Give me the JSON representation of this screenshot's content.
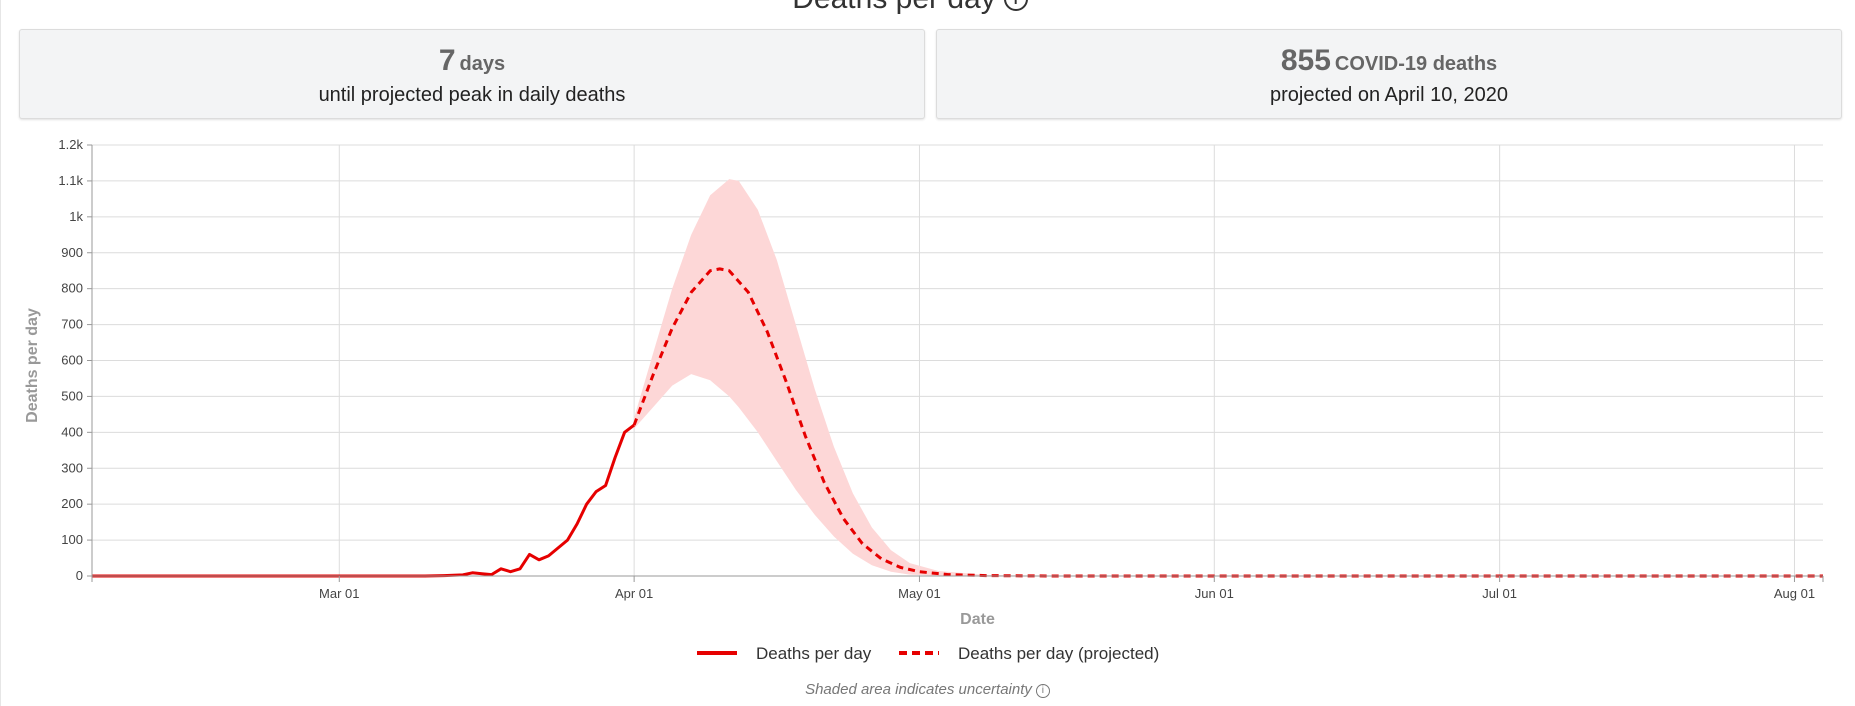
{
  "header": {
    "title": "Deaths per day"
  },
  "summary": {
    "peak_days_value": "7",
    "peak_days_unit": "days",
    "peak_days_caption": "until projected peak in daily deaths",
    "peak_deaths_value": "855",
    "peak_deaths_unit": "COVID-19 deaths",
    "peak_deaths_caption": "projected on April 10, 2020"
  },
  "footnote": "Shaded area indicates uncertainty",
  "colors": {
    "line": "#e60000",
    "band": "#fdd7d7",
    "grid": "#dcdcdc",
    "axis": "#999999"
  },
  "chart_data": {
    "type": "line",
    "xlabel": "Date",
    "ylabel": "Deaths per day",
    "x_range": [
      "2020-02-04",
      "2020-08-04"
    ],
    "ylim": [
      0,
      1200
    ],
    "x_ticks": [
      {
        "date": "2020-03-01",
        "label": "Mar 01"
      },
      {
        "date": "2020-04-01",
        "label": "Apr 01"
      },
      {
        "date": "2020-05-01",
        "label": "May 01"
      },
      {
        "date": "2020-06-01",
        "label": "Jun 01"
      },
      {
        "date": "2020-07-01",
        "label": "Jul 01"
      },
      {
        "date": "2020-08-01",
        "label": "Aug 01"
      }
    ],
    "y_ticks": [
      {
        "value": 0,
        "label": "0"
      },
      {
        "value": 100,
        "label": "100"
      },
      {
        "value": 200,
        "label": "200"
      },
      {
        "value": 300,
        "label": "300"
      },
      {
        "value": 400,
        "label": "400"
      },
      {
        "value": 500,
        "label": "500"
      },
      {
        "value": 600,
        "label": "600"
      },
      {
        "value": 700,
        "label": "700"
      },
      {
        "value": 800,
        "label": "800"
      },
      {
        "value": 900,
        "label": "900"
      },
      {
        "value": 1000,
        "label": "1k"
      },
      {
        "value": 1100,
        "label": "1.1k"
      },
      {
        "value": 1200,
        "label": "1.2k"
      }
    ],
    "grid": true,
    "legend_position": "bottom-center",
    "series": [
      {
        "name": "Deaths per day",
        "style": "solid",
        "points": [
          [
            "2020-02-04",
            0
          ],
          [
            "2020-03-10",
            0
          ],
          [
            "2020-03-12",
            1
          ],
          [
            "2020-03-13",
            2
          ],
          [
            "2020-03-14",
            3
          ],
          [
            "2020-03-15",
            9
          ],
          [
            "2020-03-16",
            6
          ],
          [
            "2020-03-17",
            4
          ],
          [
            "2020-03-18",
            20
          ],
          [
            "2020-03-19",
            12
          ],
          [
            "2020-03-20",
            20
          ],
          [
            "2020-03-21",
            60
          ],
          [
            "2020-03-22",
            45
          ],
          [
            "2020-03-23",
            56
          ],
          [
            "2020-03-24",
            78
          ],
          [
            "2020-03-25",
            100
          ],
          [
            "2020-03-26",
            145
          ],
          [
            "2020-03-27",
            200
          ],
          [
            "2020-03-28",
            235
          ],
          [
            "2020-03-29",
            252
          ],
          [
            "2020-03-30",
            330
          ],
          [
            "2020-03-31",
            400
          ],
          [
            "2020-04-01",
            420
          ]
        ]
      },
      {
        "name": "Deaths per day (projected)",
        "style": "dashed",
        "points": [
          [
            "2020-04-01",
            420
          ],
          [
            "2020-04-03",
            560
          ],
          [
            "2020-04-05",
            690
          ],
          [
            "2020-04-07",
            790
          ],
          [
            "2020-04-09",
            850
          ],
          [
            "2020-04-10",
            855
          ],
          [
            "2020-04-11",
            850
          ],
          [
            "2020-04-13",
            790
          ],
          [
            "2020-04-15",
            680
          ],
          [
            "2020-04-17",
            540
          ],
          [
            "2020-04-19",
            390
          ],
          [
            "2020-04-21",
            260
          ],
          [
            "2020-04-23",
            160
          ],
          [
            "2020-04-25",
            90
          ],
          [
            "2020-04-27",
            48
          ],
          [
            "2020-04-29",
            24
          ],
          [
            "2020-05-01",
            12
          ],
          [
            "2020-05-04",
            4
          ],
          [
            "2020-05-08",
            1
          ],
          [
            "2020-05-15",
            0
          ],
          [
            "2020-08-04",
            0
          ]
        ]
      }
    ],
    "uncertainty_band": [
      [
        "2020-04-01",
        410,
        440
      ],
      [
        "2020-04-03",
        470,
        620
      ],
      [
        "2020-04-05",
        530,
        800
      ],
      [
        "2020-04-07",
        562,
        950
      ],
      [
        "2020-04-09",
        545,
        1060
      ],
      [
        "2020-04-11",
        500,
        1105
      ],
      [
        "2020-04-12",
        470,
        1100
      ],
      [
        "2020-04-14",
        400,
        1020
      ],
      [
        "2020-04-16",
        320,
        880
      ],
      [
        "2020-04-18",
        240,
        700
      ],
      [
        "2020-04-20",
        170,
        520
      ],
      [
        "2020-04-22",
        110,
        360
      ],
      [
        "2020-04-24",
        62,
        230
      ],
      [
        "2020-04-26",
        30,
        135
      ],
      [
        "2020-04-28",
        12,
        72
      ],
      [
        "2020-04-30",
        4,
        36
      ],
      [
        "2020-05-03",
        1,
        14
      ],
      [
        "2020-05-08",
        0,
        3
      ],
      [
        "2020-05-15",
        0,
        0
      ]
    ]
  }
}
